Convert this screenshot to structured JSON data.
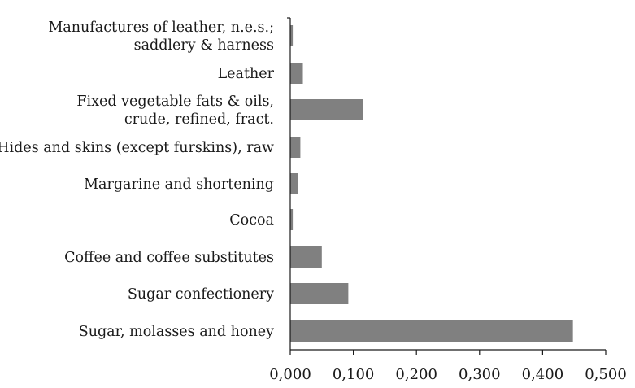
{
  "chart_data": {
    "type": "bar",
    "orientation": "horizontal",
    "categories": [
      [
        "Manufactures of leather, n.e.s.;",
        "saddlery & harness"
      ],
      [
        "Leather"
      ],
      [
        "Fixed vegetable fats & oils,",
        "crude, refined, fract."
      ],
      [
        "Hides and skins (except furskins), raw"
      ],
      [
        "Margarine and shortening"
      ],
      [
        "Cocoa"
      ],
      [
        "Coffee and coffee substitutes"
      ],
      [
        "Sugar confectionery"
      ],
      [
        "Sugar, molasses and honey"
      ]
    ],
    "values": [
      0.004,
      0.02,
      0.115,
      0.016,
      0.012,
      0.004,
      0.05,
      0.092,
      0.448
    ],
    "xlim": [
      0,
      0.5
    ],
    "xticks": [
      "0,000",
      "0,100",
      "0,200",
      "0,300",
      "0,400",
      "0,500"
    ],
    "bar_color": "#808080",
    "grid": false,
    "title": "",
    "xlabel": "",
    "ylabel": ""
  }
}
